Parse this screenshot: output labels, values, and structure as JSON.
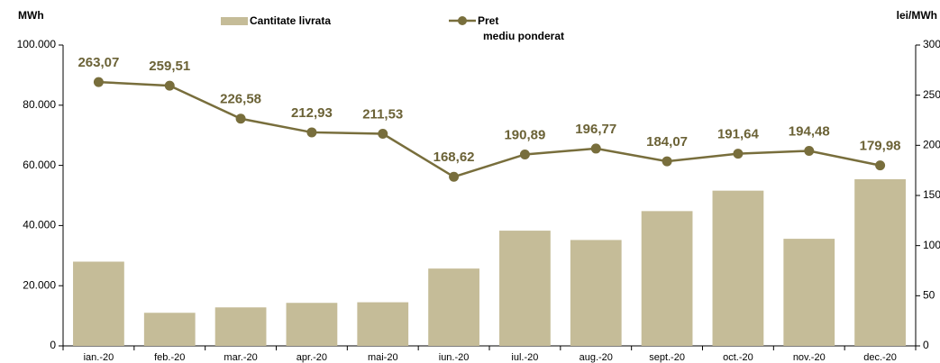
{
  "chart_data": {
    "type": "bar_line",
    "y_label": "MWh",
    "y2_label": "lei/MWh",
    "categories": [
      "ian.-20",
      "feb.-20",
      "mar.-20",
      "apr.-20",
      "mai-20",
      "iun.-20",
      "iul.-20",
      "aug.-20",
      "sept.-20",
      "oct.-20",
      "nov.-20",
      "dec.-20"
    ],
    "series": [
      {
        "name": "Cantitate livrata",
        "type": "bar",
        "color": "#c5bc98",
        "values": [
          28000,
          11000,
          12800,
          14300,
          14500,
          25700,
          38300,
          35200,
          44800,
          51600,
          35600,
          55400
        ]
      },
      {
        "name": "Pret mediu ponderat",
        "type": "line",
        "axis": "y2",
        "color": "#786e3c",
        "values": [
          263.07,
          259.51,
          226.58,
          212.93,
          211.53,
          168.62,
          190.89,
          196.77,
          184.07,
          191.64,
          194.48,
          179.98
        ],
        "value_labels": [
          "263,07",
          "259,51",
          "226,58",
          "212,93",
          "211,53",
          "168,62",
          "190,89",
          "196,77",
          "184,07",
          "191,64",
          "194,48",
          "179,98"
        ]
      }
    ],
    "ylim": [
      0,
      100000
    ],
    "yticks": [
      0,
      {
        "value": 20000,
        "label": "20.000"
      },
      {
        "value": 40000,
        "label": "40.000"
      },
      {
        "value": 60000,
        "label": "60.000"
      },
      {
        "value": 80000,
        "label": "80.000"
      },
      {
        "value": 100000,
        "label": "100.000"
      }
    ],
    "y2lim": [
      0,
      300
    ],
    "y2ticks": [
      0,
      50,
      100,
      150,
      200,
      250,
      300
    ]
  }
}
